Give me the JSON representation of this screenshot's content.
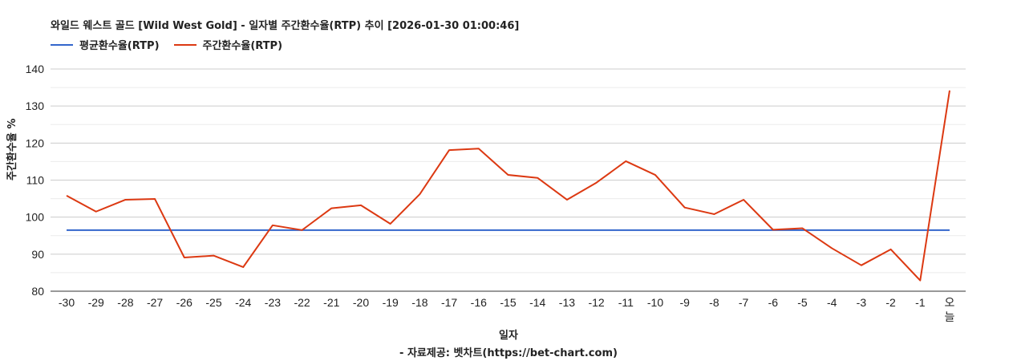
{
  "chart_data": {
    "type": "line",
    "title": "와일드 웨스트 골드 [Wild West Gold] - 일자별 주간환수율(RTP) 추이 [2026-01-30 01:00:46]",
    "xlabel": "일자",
    "ylabel": "주간환수율 %",
    "source": "- 자료제공: 벳차트(https://bet-chart.com)",
    "ylim": [
      80,
      140
    ],
    "yticks": [
      80,
      90,
      100,
      110,
      120,
      130,
      140
    ],
    "grid": true,
    "legend_position": "top-left",
    "categories": [
      "-30",
      "-29",
      "-28",
      "-27",
      "-26",
      "-25",
      "-24",
      "-23",
      "-22",
      "-21",
      "-20",
      "-19",
      "-18",
      "-17",
      "-16",
      "-15",
      "-14",
      "-13",
      "-12",
      "-11",
      "-10",
      "-9",
      "-8",
      "-7",
      "-6",
      "-5",
      "-4",
      "-3",
      "-2",
      "-1",
      "오늘"
    ],
    "series": [
      {
        "name": "평균환수율(RTP)",
        "color": "#3366cc",
        "values": [
          96.5,
          96.5,
          96.5,
          96.5,
          96.5,
          96.5,
          96.5,
          96.5,
          96.5,
          96.5,
          96.5,
          96.5,
          96.5,
          96.5,
          96.5,
          96.5,
          96.5,
          96.5,
          96.5,
          96.5,
          96.5,
          96.5,
          96.5,
          96.5,
          96.5,
          96.5,
          96.5,
          96.5,
          96.5,
          96.5,
          96.5
        ]
      },
      {
        "name": "주간환수율(RTP)",
        "color": "#dc3912",
        "values": [
          105.8,
          101.5,
          104.7,
          104.9,
          89.1,
          89.6,
          86.5,
          97.8,
          96.5,
          102.4,
          103.2,
          98.2,
          106.2,
          118.1,
          118.5,
          111.4,
          110.6,
          104.7,
          109.3,
          115.1,
          111.4,
          102.6,
          100.8,
          104.7,
          96.6,
          97.0,
          91.6,
          87.0,
          91.3,
          82.9,
          134.2
        ]
      }
    ]
  },
  "title": "와일드 웨스트 골드 [Wild West Gold] - 일자별 주간환수율(RTP) 추이 [2026-01-30 01:00:46]",
  "legend": [
    {
      "label": "평균환수율(RTP)",
      "color": "#3366cc"
    },
    {
      "label": "주간환수율(RTP)",
      "color": "#dc3912"
    }
  ],
  "axes": {
    "x_title": "일자",
    "y_title": "주간환수율 %"
  },
  "footer": {
    "source": "- 자료제공: 벳차트(https://bet-chart.com)"
  }
}
